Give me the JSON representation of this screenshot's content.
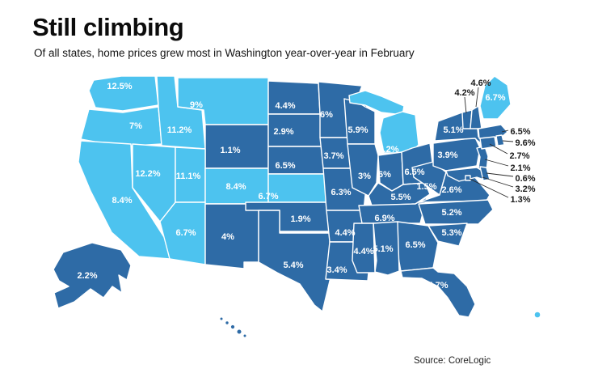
{
  "meta": {
    "title": "Still climbing",
    "subtitle": "Of all states, home prices grew most in Washington year-over-year in February",
    "source": "Source: CoreLogic"
  },
  "colors": {
    "background": "#ffffff",
    "light": "#4dc3ef",
    "dark": "#2e6ba6",
    "state_label": "#ffffff",
    "external_label": "#1a1a1a",
    "leader_line": "#2a2a2a",
    "title": "#0c0c0c"
  },
  "chart_data": {
    "type": "heatmap",
    "title": "Still climbing",
    "subtitle": "Of all states, home prices grew most in Washington year-over-year in February",
    "metric": "Year-over-year home price growth, February",
    "unit": "%",
    "legend": "off",
    "color_groups": {
      "light": "#4dc3ef",
      "dark": "#2e6ba6"
    },
    "states": [
      {
        "id": "WA",
        "name": "Washington",
        "label": "12.5%",
        "value": 12.5,
        "group": "light"
      },
      {
        "id": "OR",
        "name": "Oregon",
        "label": "7%",
        "value": 7,
        "group": "light"
      },
      {
        "id": "CA",
        "name": "California",
        "label": "8.4%",
        "value": 8.4,
        "group": "light"
      },
      {
        "id": "NV",
        "name": "Nevada",
        "label": "12.2%",
        "value": 12.2,
        "group": "light"
      },
      {
        "id": "ID",
        "name": "Idaho",
        "label": "11.2%",
        "value": 11.2,
        "group": "light"
      },
      {
        "id": "MT",
        "name": "Montana",
        "label": "9%",
        "value": 9,
        "group": "light"
      },
      {
        "id": "WY",
        "name": "Wyoming",
        "label": "1.1%",
        "value": 1.1,
        "group": "dark"
      },
      {
        "id": "UT",
        "name": "Utah",
        "label": "11.1%",
        "value": 11.1,
        "group": "light"
      },
      {
        "id": "CO",
        "name": "Colorado",
        "label": "8.4%",
        "value": 8.4,
        "group": "light"
      },
      {
        "id": "AZ",
        "name": "Arizona",
        "label": "6.7%",
        "value": 6.7,
        "group": "light"
      },
      {
        "id": "NM",
        "name": "New Mexico",
        "label": "4%",
        "value": 4,
        "group": "dark"
      },
      {
        "id": "ND",
        "name": "North Dakota",
        "label": "4.4%",
        "value": 4.4,
        "group": "dark"
      },
      {
        "id": "SD",
        "name": "South Dakota",
        "label": "2.9%",
        "value": 2.9,
        "group": "dark"
      },
      {
        "id": "NE",
        "name": "Nebraska",
        "label": "6.5%",
        "value": 6.5,
        "group": "dark"
      },
      {
        "id": "KS",
        "name": "Kansas",
        "label": "6.7%",
        "value": 6.7,
        "group": "light"
      },
      {
        "id": "OK",
        "name": "Oklahoma",
        "label": "1.9%",
        "value": 1.9,
        "group": "dark"
      },
      {
        "id": "TX",
        "name": "Texas",
        "label": "5.4%",
        "value": 5.4,
        "group": "dark"
      },
      {
        "id": "MN",
        "name": "Minnesota",
        "label": "6%",
        "value": 6,
        "group": "dark"
      },
      {
        "id": "IA",
        "name": "Iowa",
        "label": "3.7%",
        "value": 3.7,
        "group": "dark"
      },
      {
        "id": "MO",
        "name": "Missouri",
        "label": "6.3%",
        "value": 6.3,
        "group": "dark"
      },
      {
        "id": "AR",
        "name": "Arkansas",
        "label": "4.4%",
        "value": 4.4,
        "group": "dark"
      },
      {
        "id": "LA",
        "name": "Louisiana",
        "label": "3.4%",
        "value": 3.4,
        "group": "dark"
      },
      {
        "id": "WI",
        "name": "Wisconsin",
        "label": "5.9%",
        "value": 5.9,
        "group": "dark"
      },
      {
        "id": "MI",
        "name": "Michigan",
        "label": "7.2%",
        "value": 7.2,
        "group": "light"
      },
      {
        "id": "IL",
        "name": "Illinois",
        "label": "3%",
        "value": 3,
        "group": "dark"
      },
      {
        "id": "IN",
        "name": "Indiana",
        "label": "6%",
        "value": 6,
        "group": "dark"
      },
      {
        "id": "OH",
        "name": "Ohio",
        "label": "6.5%",
        "value": 6.5,
        "group": "dark"
      },
      {
        "id": "KY",
        "name": "Kentucky",
        "label": "5.5%",
        "value": 5.5,
        "group": "dark"
      },
      {
        "id": "TN",
        "name": "Tennessee",
        "label": "6.9%",
        "value": 6.9,
        "group": "dark"
      },
      {
        "id": "WV",
        "name": "West Virginia",
        "label": "1.5%",
        "value": 1.5,
        "group": "dark"
      },
      {
        "id": "VA",
        "name": "Virginia",
        "label": "2.6%",
        "value": 2.6,
        "group": "dark"
      },
      {
        "id": "NC",
        "name": "North Carolina",
        "label": "5.2%",
        "value": 5.2,
        "group": "dark"
      },
      {
        "id": "SC",
        "name": "South Carolina",
        "label": "5.3%",
        "value": 5.3,
        "group": "dark"
      },
      {
        "id": "GA",
        "name": "Georgia",
        "label": "6.5%",
        "value": 6.5,
        "group": "dark"
      },
      {
        "id": "AL",
        "name": "Alabama",
        "label": "5.1%",
        "value": 5.1,
        "group": "dark"
      },
      {
        "id": "MS",
        "name": "Mississippi",
        "label": "4.4%",
        "value": 4.4,
        "group": "dark"
      },
      {
        "id": "FL",
        "name": "Florida",
        "label": "5.7%",
        "value": 5.7,
        "group": "dark"
      },
      {
        "id": "PA",
        "name": "Pennsylvania",
        "label": "3.9%",
        "value": 3.9,
        "group": "dark"
      },
      {
        "id": "NY",
        "name": "New York",
        "label": "5.1%",
        "value": 5.1,
        "group": "dark"
      },
      {
        "id": "NJ",
        "name": "New Jersey",
        "label": "2.1%",
        "value": 2.1,
        "group": "dark"
      },
      {
        "id": "MD",
        "name": "Maryland",
        "label": "3.2%",
        "value": 3.2,
        "group": "dark"
      },
      {
        "id": "DE",
        "name": "Delaware",
        "label": "0.6%",
        "value": 0.6,
        "group": "dark"
      },
      {
        "id": "DC",
        "name": "District of Columbia",
        "label": "1.3%",
        "value": 1.3,
        "group": "dark"
      },
      {
        "id": "VT",
        "name": "Vermont",
        "label": "4.2%",
        "value": 4.2,
        "group": "dark"
      },
      {
        "id": "NH",
        "name": "New Hampshire",
        "label": "4.6%",
        "value": 4.6,
        "group": "dark"
      },
      {
        "id": "MA",
        "name": "Massachusetts",
        "label": "6.5%",
        "value": 6.5,
        "group": "dark"
      },
      {
        "id": "CT",
        "name": "Connecticut",
        "label": "2.7%",
        "value": 2.7,
        "group": "dark"
      },
      {
        "id": "RI",
        "name": "Rhode Island",
        "label": "9.6%",
        "value": 9.6,
        "group": "dark"
      },
      {
        "id": "ME",
        "name": "Maine",
        "label": "6.7%",
        "value": 6.7,
        "group": "light"
      },
      {
        "id": "AK",
        "name": "Alaska",
        "label": "2.2%",
        "value": 2.2,
        "group": "dark"
      },
      {
        "id": "HI",
        "name": "Hawaii",
        "label": "4.2%",
        "value": 4.2,
        "group": "dark"
      }
    ]
  }
}
